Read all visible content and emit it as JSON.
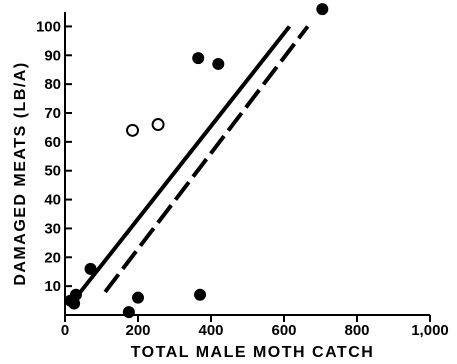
{
  "chart_data": {
    "type": "scatter",
    "title": "",
    "xlabel": "TOTAL MALE MOTH CATCH",
    "ylabel": "DAMAGED MEATS (LB/A)",
    "xlim": [
      0,
      1000
    ],
    "ylim": [
      0,
      105
    ],
    "x_ticks": [
      0,
      200,
      400,
      600,
      800,
      1000
    ],
    "x_tick_labels": [
      "0",
      "200",
      "400",
      "600",
      "800",
      "1,000"
    ],
    "y_ticks": [
      10,
      20,
      30,
      40,
      50,
      60,
      70,
      80,
      90,
      100
    ],
    "y_tick_labels": [
      "10",
      "20",
      "30",
      "40",
      "50",
      "60",
      "70",
      "80",
      "90",
      "100"
    ],
    "grid": false,
    "series": [
      {
        "marker": "filled-circle",
        "x": [
          15,
          25,
          30,
          70,
          175,
          200,
          365,
          370,
          420,
          705
        ],
        "y": [
          5,
          4,
          7,
          16,
          1,
          6,
          89,
          7,
          87,
          106
        ]
      },
      {
        "marker": "open-circle",
        "x": [
          185,
          255
        ],
        "y": [
          64,
          66
        ]
      }
    ],
    "regression_lines": [
      {
        "style": "solid",
        "x": [
          30,
          615
        ],
        "y": [
          6,
          100
        ]
      },
      {
        "style": "dashed",
        "x": [
          110,
          665
        ],
        "y": [
          8,
          100
        ]
      }
    ]
  }
}
